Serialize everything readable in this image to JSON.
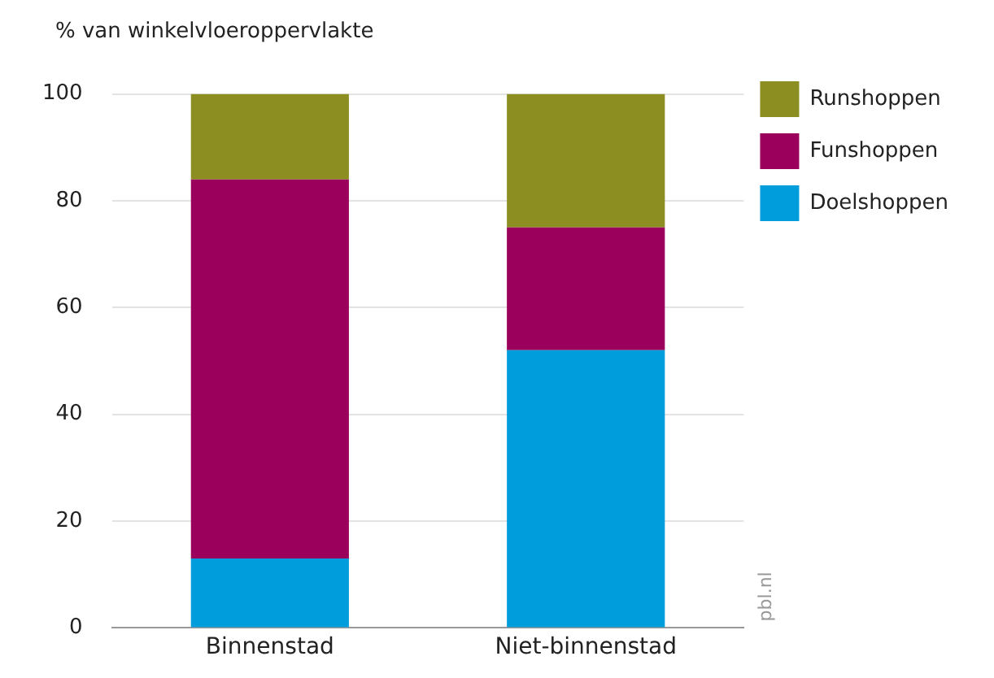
{
  "chart_data": {
    "type": "bar",
    "stacked": true,
    "ylabel": "% van winkelvloeroppervlakte",
    "categories": [
      "Binnenstad",
      "Niet-binnenstad"
    ],
    "series": [
      {
        "name": "Doelshoppen",
        "color": "#009ddc",
        "values": [
          13,
          52
        ]
      },
      {
        "name": "Funshoppen",
        "color": "#9b005c",
        "values": [
          71,
          23
        ]
      },
      {
        "name": "Runshoppen",
        "color": "#8c8e22",
        "values": [
          16,
          25
        ]
      }
    ],
    "ylim": [
      0,
      100
    ],
    "yticks": [
      0,
      20,
      40,
      60,
      80,
      100
    ],
    "grid": "y",
    "legend": "top right",
    "annotations": [
      "pbl.nl"
    ]
  }
}
